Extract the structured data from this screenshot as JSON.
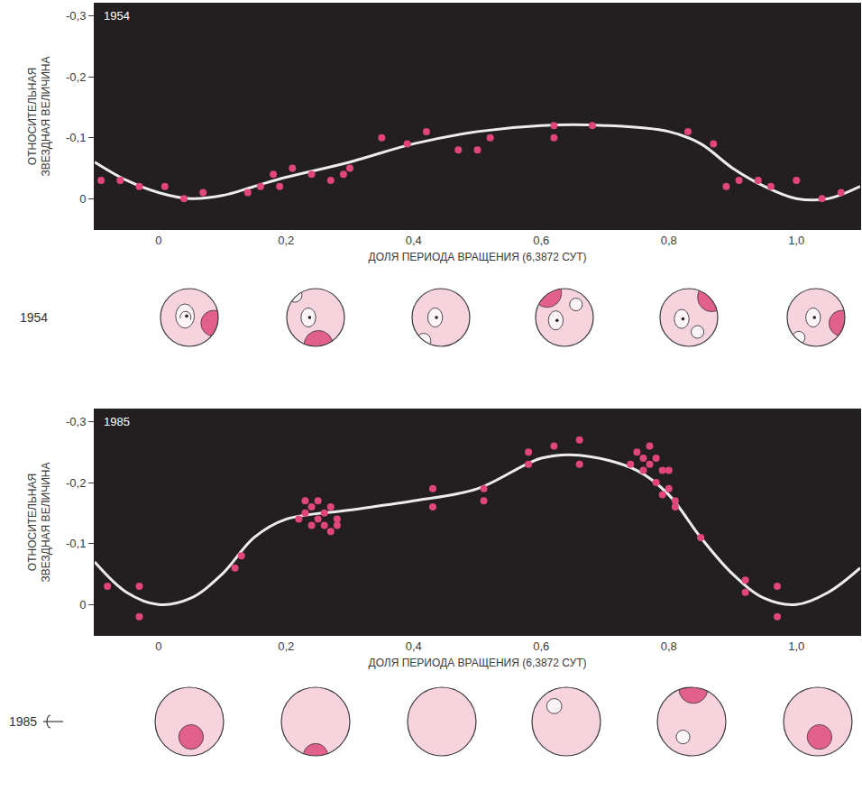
{
  "chart_data": [
    {
      "type": "scatter",
      "title": "1954",
      "x_label": "ДОЛЯ ПЕРИОДА ВРАЩЕНИЯ (6,3872 СУТ)",
      "y_label": "ОТНОСИТЕЛЬНАЯ ЗВЕЗДНАЯ ВЕЛИЧИНА",
      "xlim": [
        -0.1,
        1.1
      ],
      "ylim": [
        0.05,
        -0.32
      ],
      "xticks": [
        0,
        {
          "value": 0.2,
          "label": "0,2"
        },
        {
          "value": 0.4,
          "label": "0,4"
        },
        {
          "value": 0.6,
          "label": "0,6"
        },
        {
          "value": 0.8,
          "label": "0,8"
        },
        {
          "value": 1.0,
          "label": "1,0"
        }
      ],
      "yticks": [
        {
          "value": -0.3,
          "label": "-0,3"
        },
        {
          "value": -0.2,
          "label": "-0,2"
        },
        {
          "value": -0.1,
          "label": "-0,1"
        },
        0
      ],
      "grid": false,
      "series": [
        {
          "type": "scatter",
          "color": "#e0457b",
          "marker": "circle",
          "x": [
            -0.09,
            -0.06,
            -0.03,
            0.01,
            0.04,
            0.07,
            0.14,
            0.16,
            0.18,
            0.19,
            0.21,
            0.24,
            0.27,
            0.29,
            0.3,
            0.35,
            0.39,
            0.42,
            0.47,
            0.5,
            0.52,
            0.62,
            0.62,
            0.68,
            0.83,
            0.87,
            0.89,
            0.91,
            0.94,
            0.96,
            1.0,
            1.04,
            1.07
          ],
          "values": [
            -0.03,
            -0.03,
            -0.02,
            -0.02,
            0.0,
            -0.01,
            -0.01,
            -0.02,
            -0.04,
            -0.02,
            -0.05,
            -0.04,
            -0.03,
            -0.04,
            -0.05,
            -0.1,
            -0.09,
            -0.11,
            -0.08,
            -0.08,
            -0.1,
            -0.12,
            -0.1,
            -0.12,
            -0.11,
            -0.09,
            -0.02,
            -0.03,
            -0.03,
            -0.02,
            -0.03,
            0.0,
            -0.01
          ]
        },
        {
          "type": "line",
          "color": "#ececec",
          "line_style": "spline",
          "x": [
            -0.1,
            -0.05,
            0,
            0.05,
            0.1,
            0.15,
            0.2,
            0.3,
            0.4,
            0.5,
            0.6,
            0.7,
            0.8,
            0.85,
            0.9,
            0.95,
            1.0,
            1.05,
            1.1
          ],
          "values": [
            -0.06,
            -0.03,
            -0.01,
            0.0,
            -0.005,
            -0.02,
            -0.035,
            -0.06,
            -0.09,
            -0.11,
            -0.12,
            -0.12,
            -0.11,
            -0.09,
            -0.05,
            -0.02,
            0.0,
            0.0,
            -0.02
          ]
        }
      ]
    },
    {
      "type": "scatter",
      "title": "1985",
      "x_label": "ДОЛЯ ПЕРИОДА ВРАЩЕНИЯ (6,3872 СУТ)",
      "y_label": "ОТНОСИТЕЛЬНАЯ ЗВЕЗДНАЯ ВЕЛИЧИНА",
      "xlim": [
        -0.1,
        1.1
      ],
      "ylim": [
        0.05,
        -0.32
      ],
      "xticks": [
        0,
        {
          "value": 0.2,
          "label": "0,2"
        },
        {
          "value": 0.4,
          "label": "0,4"
        },
        {
          "value": 0.6,
          "label": "0,6"
        },
        {
          "value": 0.8,
          "label": "0,8"
        },
        {
          "value": 1.0,
          "label": "1,0"
        }
      ],
      "yticks": [
        {
          "value": -0.3,
          "label": "-0,3"
        },
        {
          "value": -0.2,
          "label": "-0,2"
        },
        {
          "value": -0.1,
          "label": "-0,1"
        },
        0
      ],
      "grid": false,
      "series": [
        {
          "type": "scatter",
          "color": "#e0457b",
          "marker": "circle",
          "x": [
            -0.08,
            -0.03,
            -0.03,
            0.12,
            0.13,
            0.22,
            0.23,
            0.23,
            0.24,
            0.24,
            0.25,
            0.25,
            0.26,
            0.26,
            0.27,
            0.27,
            0.28,
            0.28,
            0.43,
            0.43,
            0.51,
            0.51,
            0.58,
            0.58,
            0.62,
            0.66,
            0.66,
            0.74,
            0.75,
            0.76,
            0.76,
            0.77,
            0.77,
            0.78,
            0.78,
            0.79,
            0.79,
            0.8,
            0.8,
            0.81,
            0.81,
            0.85,
            0.92,
            0.92,
            0.97,
            0.97
          ],
          "values": [
            -0.03,
            -0.03,
            0.02,
            -0.06,
            -0.08,
            -0.14,
            -0.15,
            -0.17,
            -0.13,
            -0.16,
            -0.14,
            -0.17,
            -0.15,
            -0.13,
            -0.16,
            -0.12,
            -0.14,
            -0.13,
            -0.19,
            -0.16,
            -0.19,
            -0.17,
            -0.25,
            -0.23,
            -0.26,
            -0.27,
            -0.23,
            -0.23,
            -0.25,
            -0.24,
            -0.22,
            -0.26,
            -0.23,
            -0.24,
            -0.2,
            -0.22,
            -0.18,
            -0.22,
            -0.19,
            -0.17,
            -0.16,
            -0.11,
            -0.04,
            -0.02,
            -0.03,
            0.02
          ]
        },
        {
          "type": "line",
          "color": "#ececec",
          "line_style": "spline",
          "x": [
            -0.1,
            -0.05,
            0,
            0.05,
            0.1,
            0.15,
            0.2,
            0.3,
            0.4,
            0.5,
            0.6,
            0.66,
            0.75,
            0.8,
            0.85,
            0.9,
            0.95,
            1.0,
            1.05,
            1.1
          ],
          "values": [
            -0.07,
            -0.02,
            0.0,
            -0.01,
            -0.05,
            -0.11,
            -0.14,
            -0.155,
            -0.17,
            -0.19,
            -0.24,
            -0.245,
            -0.22,
            -0.18,
            -0.11,
            -0.05,
            -0.01,
            0.0,
            -0.02,
            -0.06
          ]
        }
      ]
    }
  ],
  "spot_maps": [
    {
      "label": "1954"
    },
    {
      "label": "1985"
    }
  ]
}
